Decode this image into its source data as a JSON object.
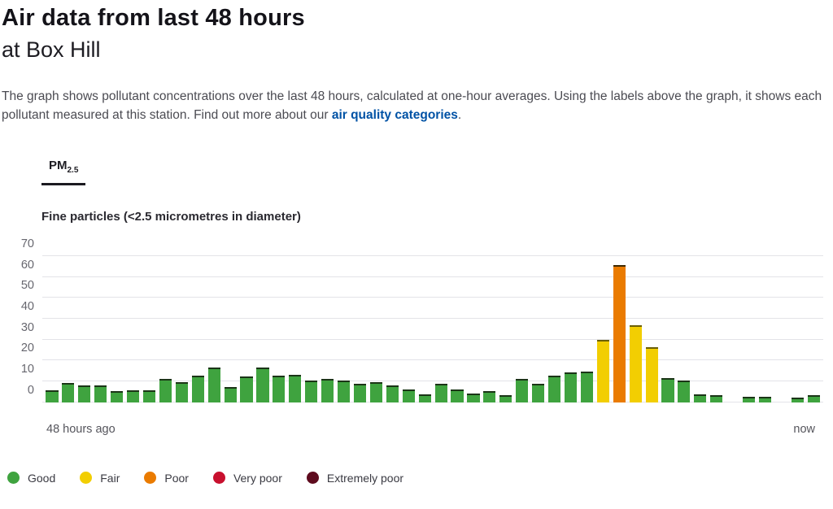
{
  "page": {
    "title": "Air data from last 48 hours",
    "subtitle": "at Box Hill",
    "description_before_link": "The graph shows pollutant concentrations over the last 48 hours, calculated at one-hour averages. Using the labels above the graph, it shows each pollutant measured at this station. Find out more about our ",
    "description_link": "air quality categories",
    "description_after_link": "."
  },
  "tabs": [
    {
      "label_main": "PM",
      "label_sub": "2.5",
      "active": true
    }
  ],
  "chart_heading": "Fine particles (<2.5 micrometres in diameter)",
  "chart_data": {
    "type": "bar",
    "title": "Fine particles (<2.5 micrometres in diameter)",
    "x_axis": "48 one-hour average slots, oldest to newest",
    "xlabel_left": "48 hours ago",
    "xlabel_right": "now",
    "ylabel": "",
    "ylim": [
      0,
      70
    ],
    "yticks": [
      0,
      10,
      20,
      30,
      40,
      50,
      60,
      70
    ],
    "grid": true,
    "legend_position": "bottom",
    "values": [
      5,
      8.5,
      7.5,
      7.5,
      4.5,
      5,
      5,
      10.5,
      9,
      12,
      16,
      6.5,
      11.5,
      16,
      12,
      12.5,
      9.5,
      10.5,
      9.5,
      8,
      9,
      7.5,
      5.5,
      3,
      8,
      5.5,
      3.5,
      4.5,
      2.5,
      10.5,
      8,
      12,
      13.5,
      14,
      29,
      65,
      36,
      25.5,
      11,
      9.5,
      3,
      2.5,
      null,
      2,
      2,
      null,
      1.5,
      2.5
    ],
    "bar_categories": [
      "good",
      "good",
      "good",
      "good",
      "good",
      "good",
      "good",
      "good",
      "good",
      "good",
      "good",
      "good",
      "good",
      "good",
      "good",
      "good",
      "good",
      "good",
      "good",
      "good",
      "good",
      "good",
      "good",
      "good",
      "good",
      "good",
      "good",
      "good",
      "good",
      "good",
      "good",
      "good",
      "good",
      "good",
      "fair",
      "poor",
      "fair",
      "fair",
      "good",
      "good",
      "good",
      "good",
      null,
      "good",
      "good",
      null,
      "good",
      "good"
    ],
    "category_colors": {
      "good": "#3fa33f",
      "fair": "#f2ce02",
      "poor": "#ea7b00",
      "very_poor": "#c8102e",
      "extremely_poor": "#5e0b1e"
    },
    "category_cap_colors": {
      "good": "#1b3517",
      "fair": "#6b5f05",
      "poor": "#3f2a00"
    },
    "legend": [
      {
        "label": "Good",
        "key": "good"
      },
      {
        "label": "Fair",
        "key": "fair"
      },
      {
        "label": "Poor",
        "key": "poor"
      },
      {
        "label": "Very poor",
        "key": "very_poor"
      },
      {
        "label": "Extremely poor",
        "key": "extremely_poor"
      }
    ]
  }
}
